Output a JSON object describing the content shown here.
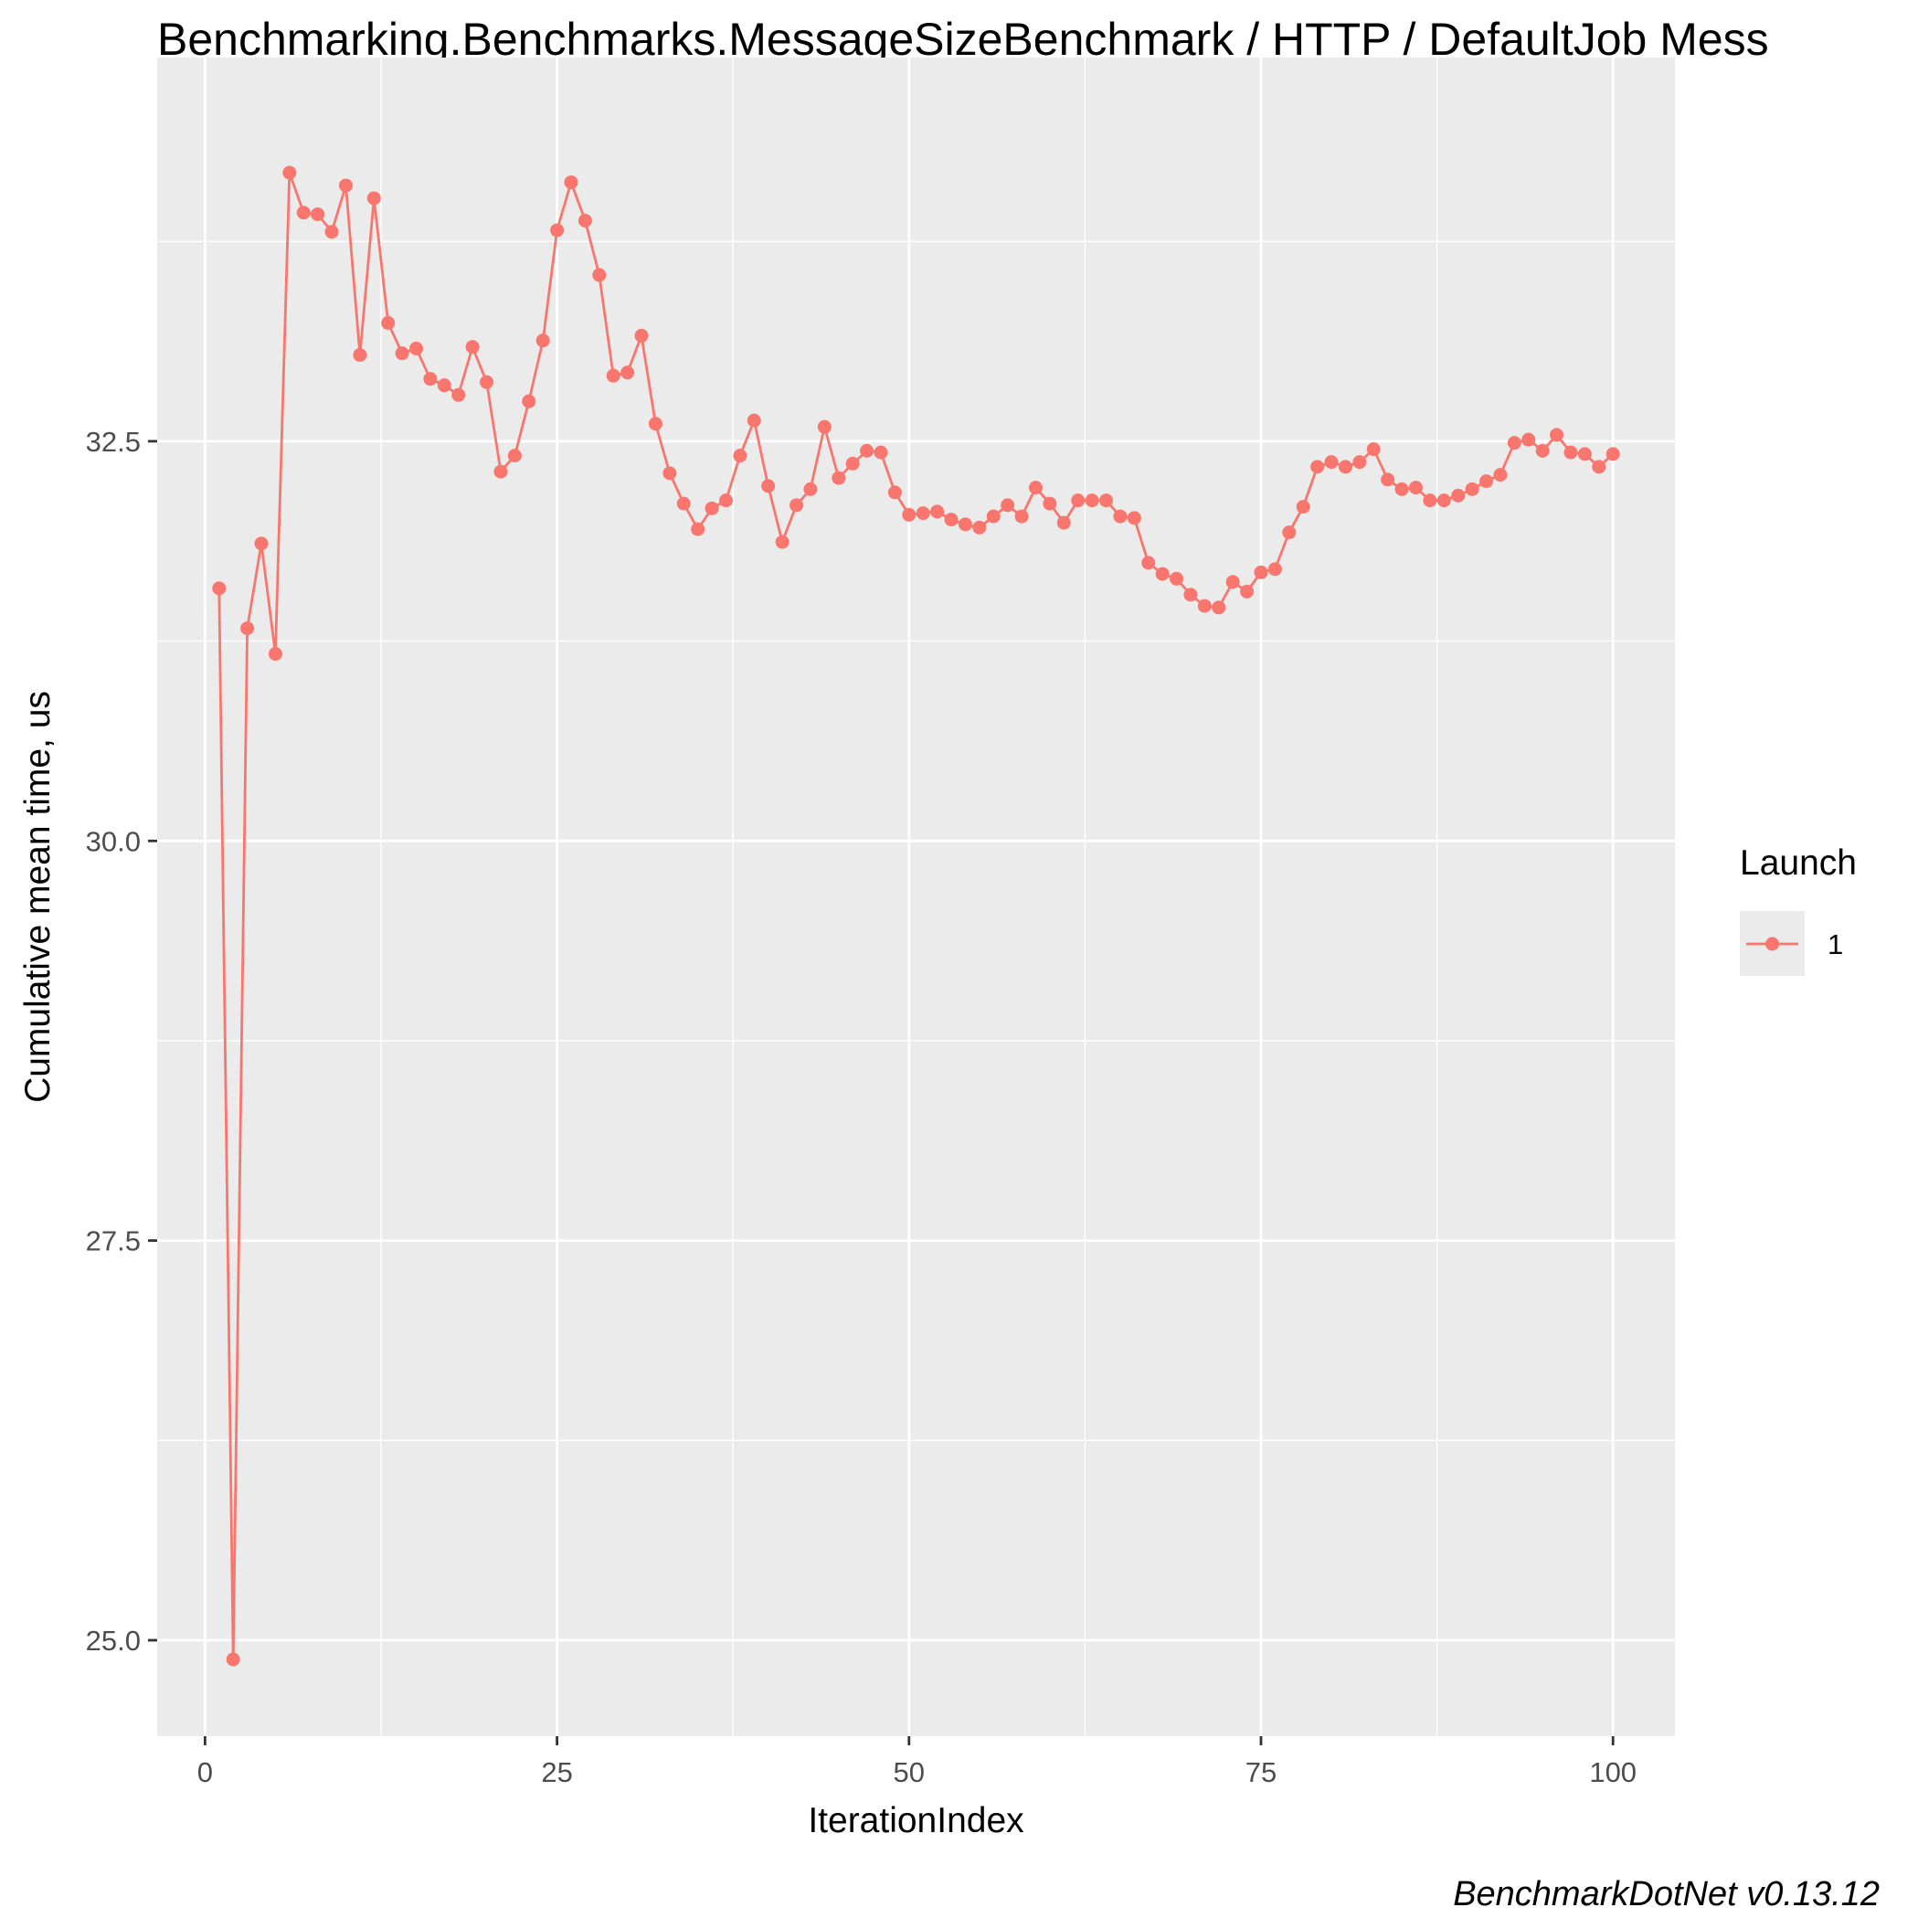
{
  "chart_data": {
    "type": "line",
    "title": "Benchmarking.Benchmarks.MessageSizeBenchmark / HTTP / DefaultJob Mess",
    "xlabel": "IterationIndex",
    "ylabel": "Cumulative mean time, us",
    "xlim": [
      -3.4,
      104.4
    ],
    "ylim": [
      24.4,
      34.9
    ],
    "x_ticks": [
      0,
      25,
      50,
      75,
      100
    ],
    "x_tick_labels": [
      "0",
      "25",
      "50",
      "75",
      "100"
    ],
    "y_ticks": [
      25.0,
      27.5,
      30.0,
      32.5
    ],
    "y_tick_labels": [
      "25.0",
      "27.5",
      "30.0",
      "32.5"
    ],
    "grid": true,
    "legend": {
      "title": "Launch",
      "position": "right",
      "entries": [
        "1"
      ]
    },
    "series": [
      {
        "name": "1",
        "color": "#F8766D",
        "x": [
          1,
          2,
          3,
          4,
          5,
          6,
          7,
          8,
          9,
          10,
          11,
          12,
          13,
          14,
          15,
          16,
          17,
          18,
          19,
          20,
          21,
          22,
          23,
          24,
          25,
          26,
          27,
          28,
          29,
          30,
          31,
          32,
          33,
          34,
          35,
          36,
          37,
          38,
          39,
          40,
          41,
          42,
          43,
          44,
          45,
          46,
          47,
          48,
          49,
          50,
          51,
          52,
          53,
          54,
          55,
          56,
          57,
          58,
          59,
          60,
          61,
          62,
          63,
          64,
          65,
          66,
          67,
          68,
          69,
          70,
          71,
          72,
          73,
          74,
          75,
          76,
          77,
          78,
          79,
          80,
          81,
          82,
          83,
          84,
          85,
          86,
          87,
          88,
          89,
          90,
          91,
          92,
          93,
          94,
          95,
          96,
          97,
          98,
          99,
          100
        ],
        "values": [
          31.58,
          24.88,
          31.33,
          31.86,
          31.17,
          34.18,
          33.93,
          33.92,
          33.81,
          34.1,
          33.04,
          34.02,
          33.24,
          33.05,
          33.08,
          32.89,
          32.85,
          32.79,
          33.09,
          32.87,
          32.31,
          32.41,
          32.75,
          33.13,
          33.82,
          34.12,
          33.88,
          33.54,
          32.91,
          32.93,
          33.16,
          32.61,
          32.3,
          32.11,
          31.95,
          32.08,
          32.13,
          32.41,
          32.63,
          32.22,
          31.87,
          32.1,
          32.2,
          32.59,
          32.27,
          32.36,
          32.44,
          32.43,
          32.18,
          32.04,
          32.05,
          32.06,
          32.01,
          31.98,
          31.96,
          32.03,
          32.1,
          32.03,
          32.21,
          32.11,
          31.99,
          32.13,
          32.13,
          32.13,
          32.03,
          32.02,
          31.74,
          31.67,
          31.64,
          31.54,
          31.47,
          31.46,
          31.62,
          31.56,
          31.68,
          31.7,
          31.93,
          32.09,
          32.34,
          32.37,
          32.34,
          32.37,
          32.45,
          32.26,
          32.2,
          32.21,
          32.13,
          32.13,
          32.16,
          32.2,
          32.25,
          32.29,
          32.49,
          32.51,
          32.44,
          32.54,
          32.43,
          32.42,
          32.34,
          32.42
        ]
      }
    ]
  },
  "footer": {
    "credit": "BenchmarkDotNet v0.13.12"
  }
}
